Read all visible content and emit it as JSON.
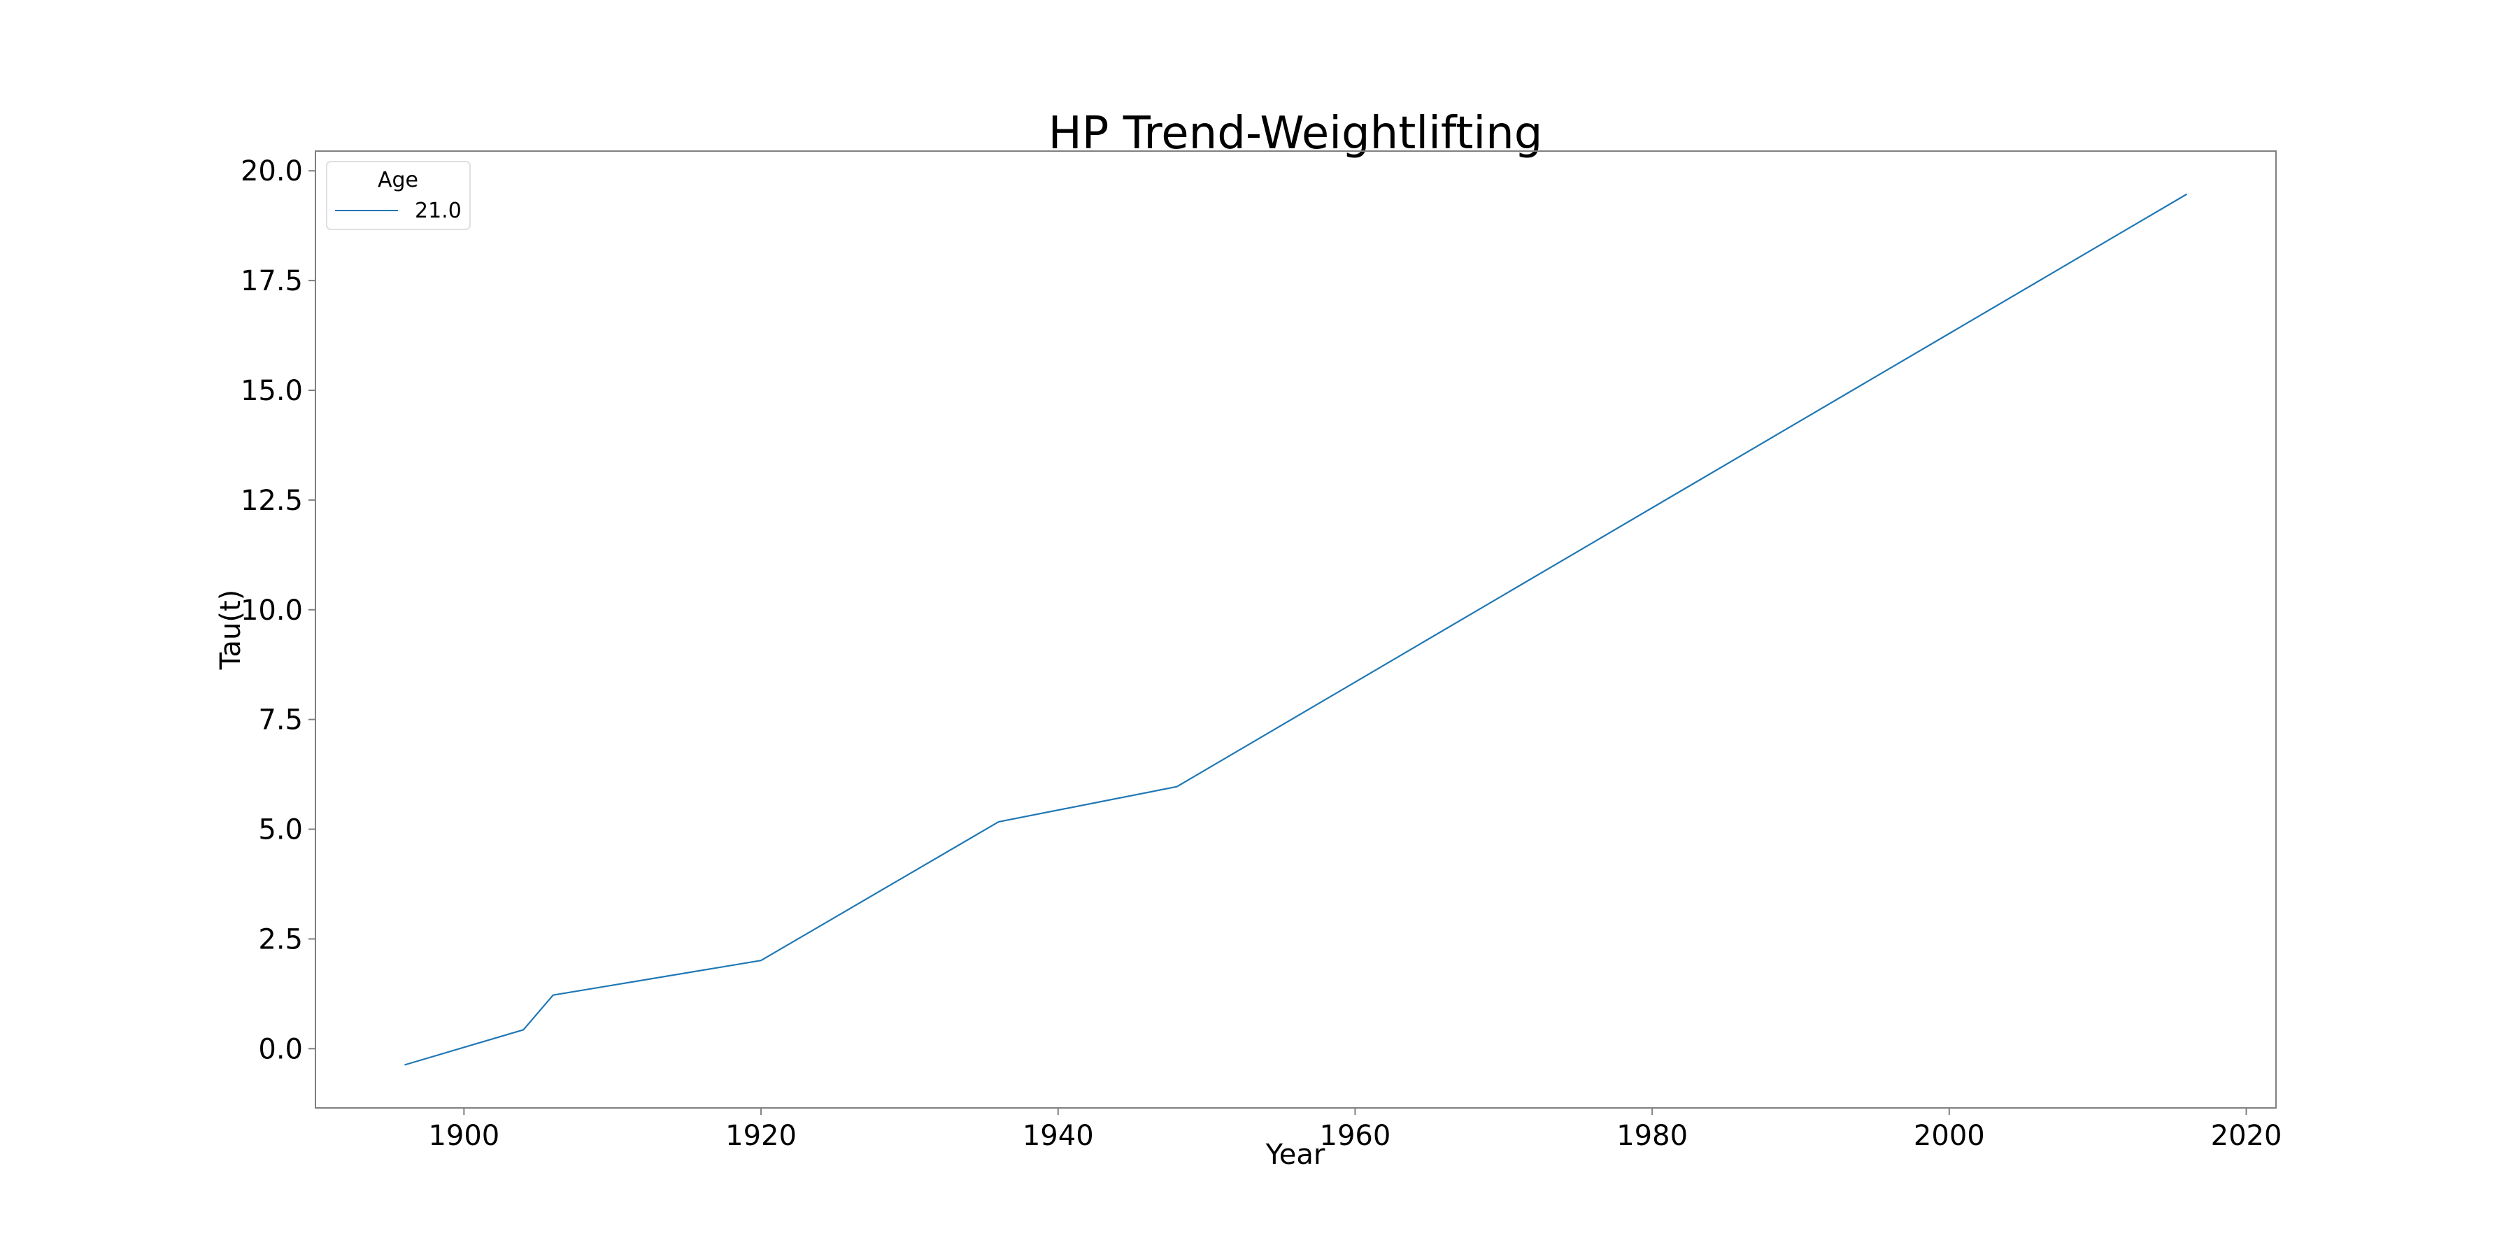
{
  "chart_data": {
    "type": "line",
    "title": "HP Trend-Weightlifting",
    "xlabel": "Year",
    "ylabel": "Tau(t)",
    "xlim": [
      1890,
      2022
    ],
    "ylim": [
      -1.35,
      20.45
    ],
    "xticks": [
      1900,
      1920,
      1940,
      1960,
      1980,
      2000,
      2020
    ],
    "yticks": [
      0.0,
      2.5,
      5.0,
      7.5,
      10.0,
      12.5,
      15.0,
      17.5,
      20.0
    ],
    "xtick_labels": [
      "1900",
      "1920",
      "1940",
      "1960",
      "1980",
      "2000",
      "2020"
    ],
    "ytick_labels": [
      "0.0",
      "2.5",
      "5.0",
      "7.5",
      "10.0",
      "12.5",
      "15.0",
      "17.5",
      "20.0"
    ],
    "grid": false,
    "legend": {
      "title": "Age",
      "placement": "top-left"
    },
    "series": [
      {
        "name": "21.0",
        "color": "#1f77b4",
        "x": [
          1896,
          1904,
          1906,
          1920,
          1936,
          1948,
          2016
        ],
        "y": [
          -0.37,
          0.43,
          1.22,
          2.01,
          5.17,
          5.97,
          19.47
        ]
      }
    ]
  }
}
